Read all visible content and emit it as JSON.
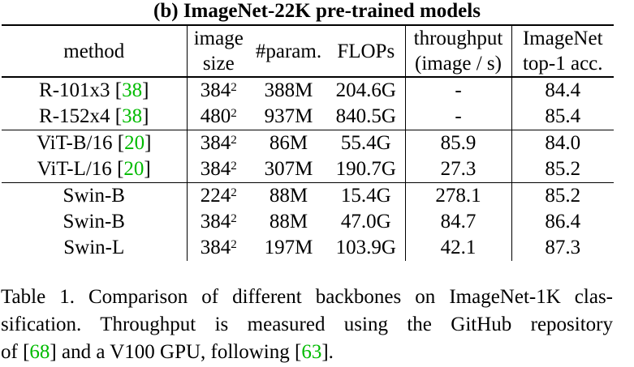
{
  "table_title": "(b) ImageNet-22K pre-trained models",
  "header": {
    "method": "method",
    "image_size": [
      "image",
      "size"
    ],
    "params": "#param.",
    "flops": "FLOPs",
    "throughput": [
      "throughput",
      "(image / s)"
    ],
    "acc": [
      "ImageNet",
      "top-1 acc."
    ]
  },
  "groups": [
    [
      {
        "name": "R-101x3",
        "cite": "38",
        "size_base": "384",
        "size_exp": "2",
        "params": "388M",
        "flops": "204.6G",
        "throughput": "-",
        "acc": "84.4"
      },
      {
        "name": "R-152x4",
        "cite": "38",
        "size_base": "480",
        "size_exp": "2",
        "params": "937M",
        "flops": "840.5G",
        "throughput": "-",
        "acc": "85.4"
      }
    ],
    [
      {
        "name": "ViT-B/16",
        "cite": "20",
        "size_base": "384",
        "size_exp": "2",
        "params": "86M",
        "flops": "55.4G",
        "throughput": "85.9",
        "acc": "84.0"
      },
      {
        "name": "ViT-L/16",
        "cite": "20",
        "size_base": "384",
        "size_exp": "2",
        "params": "307M",
        "flops": "190.7G",
        "throughput": "27.3",
        "acc": "85.2"
      }
    ],
    [
      {
        "name": "Swin-B",
        "cite": "",
        "size_base": "224",
        "size_exp": "2",
        "params": "88M",
        "flops": "15.4G",
        "throughput": "278.1",
        "acc": "85.2"
      },
      {
        "name": "Swin-B",
        "cite": "",
        "size_base": "384",
        "size_exp": "2",
        "params": "88M",
        "flops": "47.0G",
        "throughput": "84.7",
        "acc": "86.4"
      },
      {
        "name": "Swin-L",
        "cite": "",
        "size_base": "384",
        "size_exp": "2",
        "params": "197M",
        "flops": "103.9G",
        "throughput": "42.1",
        "acc": "87.3"
      }
    ]
  ],
  "caption": {
    "line1": "Table 1. Comparison of different backbones on ImageNet-1K clas-",
    "line2": "sification.  Throughput is measured using the GitHub repository",
    "line3_a": "of [",
    "cite_a": "68",
    "line3_b": "] and a V100 GPU, following [",
    "cite_b": "63",
    "line3_c": "]."
  }
}
